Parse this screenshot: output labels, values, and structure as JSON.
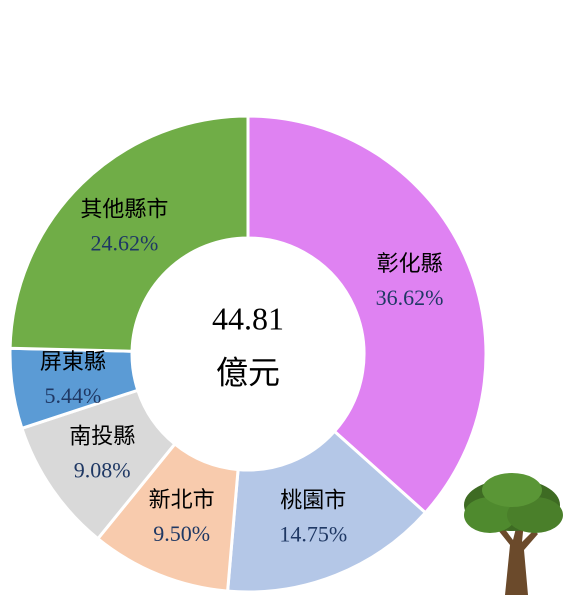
{
  "chart_data": {
    "type": "donut",
    "categories": [
      "彰化縣",
      "桃園市",
      "新北市",
      "南投縣",
      "屏東縣",
      "其他縣市"
    ],
    "values": [
      36.62,
      14.75,
      9.5,
      9.08,
      5.44,
      24.62
    ],
    "value_labels": [
      "36.62%",
      "14.75%",
      "9.50%",
      "9.08%",
      "5.44%",
      "24.62%"
    ],
    "colors": [
      "#df82f2",
      "#b4c7e7",
      "#f8cbad",
      "#d9d9d9",
      "#5b9bd5",
      "#70ad47"
    ],
    "center_text": [
      "44.81",
      "億元"
    ]
  }
}
